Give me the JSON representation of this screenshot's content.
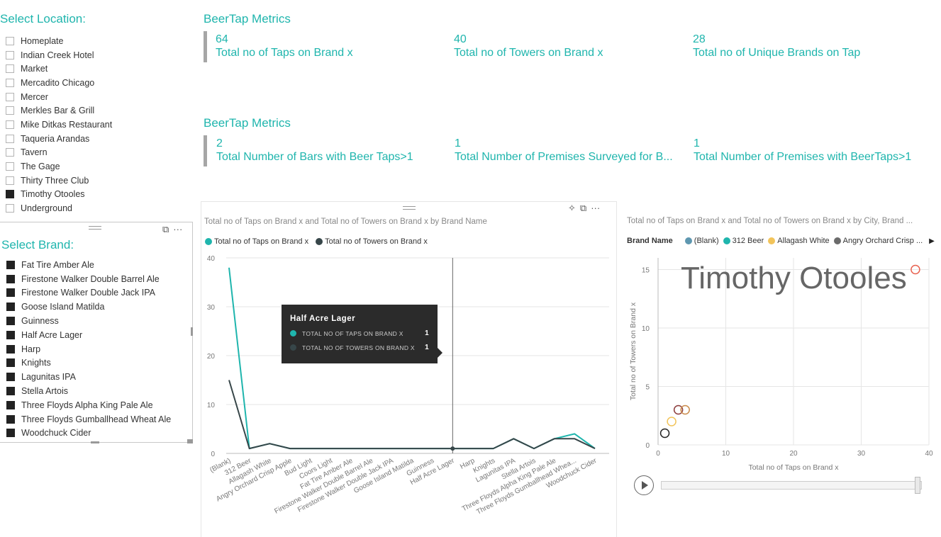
{
  "location_slicer": {
    "title": "Select Location:",
    "items": [
      {
        "label": "Homeplate",
        "checked": false
      },
      {
        "label": "Indian Creek Hotel",
        "checked": false
      },
      {
        "label": "Market",
        "checked": false
      },
      {
        "label": "Mercadito Chicago",
        "checked": false
      },
      {
        "label": "Mercer",
        "checked": false
      },
      {
        "label": "Merkles Bar & Grill",
        "checked": false
      },
      {
        "label": "Mike Ditkas Restaurant",
        "checked": false
      },
      {
        "label": "Taqueria Arandas",
        "checked": false
      },
      {
        "label": "Tavern",
        "checked": false
      },
      {
        "label": "The Gage",
        "checked": false
      },
      {
        "label": "Thirty Three Club",
        "checked": false
      },
      {
        "label": "Timothy Otooles",
        "checked": true
      },
      {
        "label": "Underground",
        "checked": false
      }
    ]
  },
  "brand_slicer": {
    "title": "Select Brand:",
    "items": [
      {
        "label": "Fat Tire Amber Ale",
        "checked": true
      },
      {
        "label": "Firestone Walker Double Barrel Ale",
        "checked": true
      },
      {
        "label": "Firestone Walker Double Jack IPA",
        "checked": true
      },
      {
        "label": "Goose Island Matilda",
        "checked": true
      },
      {
        "label": "Guinness",
        "checked": true
      },
      {
        "label": "Half Acre Lager",
        "checked": true
      },
      {
        "label": "Harp",
        "checked": true
      },
      {
        "label": "Knights",
        "checked": true
      },
      {
        "label": "Lagunitas IPA",
        "checked": true
      },
      {
        "label": "Stella Artois",
        "checked": true
      },
      {
        "label": "Three Floyds Alpha King Pale Ale",
        "checked": true
      },
      {
        "label": "Three Floyds Gumballhead Wheat Ale",
        "checked": true
      },
      {
        "label": "Woodchuck Cider",
        "checked": true
      }
    ]
  },
  "card_groups": [
    {
      "title": "BeerTap Metrics",
      "cards": [
        {
          "value": "64",
          "label": "Total no of Taps on Brand x"
        },
        {
          "value": "40",
          "label": "Total no of Towers on Brand x"
        },
        {
          "value": "28",
          "label": "Total no of Unique Brands on Tap"
        }
      ]
    },
    {
      "title": "BeerTap Metrics",
      "cards": [
        {
          "value": "2",
          "label": "Total Number of Bars with Beer Taps>1"
        },
        {
          "value": "1",
          "label": "Total Number of Premises Surveyed for B..."
        },
        {
          "value": "1",
          "label": "Total Number of Premises with BeerTaps>1"
        }
      ]
    }
  ],
  "visual_icons": {
    "pin": "pin-icon",
    "focus": "focus-mode-icon",
    "more": "more-options-icon"
  },
  "chart_data": [
    {
      "type": "line",
      "title": "Total no of Taps on Brand x and Total no of Towers on Brand x by Brand Name",
      "categories": [
        "(Blank)",
        "312 Beer",
        "Allagash White",
        "Angry Orchard Crisp Apple",
        "Bud Light",
        "Coors Light",
        "Fat Tire Amber Ale",
        "Firestone Walker Double Barrel Ale",
        "Firestone Walker Double Jack IPA",
        "Goose Island Matilda",
        "Guinness",
        "Half Acre Lager",
        "Harp",
        "Knights",
        "Lagunitas IPA",
        "Stella Artois",
        "Three Floyds Alpha King Pale Ale",
        "Three Floyds Gumballhead Whea...",
        "Woodchuck Cider"
      ],
      "series": [
        {
          "name": "Total no of Taps on Brand x",
          "color": "#1fb5ad",
          "values": [
            38,
            1,
            2,
            1,
            1,
            1,
            1,
            1,
            1,
            1,
            1,
            1,
            1,
            1,
            3,
            1,
            3,
            4,
            1
          ]
        },
        {
          "name": "Total no of Towers on Brand x",
          "color": "#374649",
          "values": [
            15,
            1,
            2,
            1,
            1,
            1,
            1,
            1,
            1,
            1,
            1,
            1,
            1,
            1,
            3,
            1,
            3,
            3,
            1
          ]
        }
      ],
      "y_ticks": [
        "0",
        "10",
        "20",
        "30",
        "40"
      ],
      "ylim": [
        0,
        40
      ],
      "legend": "top-left",
      "grid": true,
      "highlight_category": "Half Acre Lager",
      "tooltip": {
        "title": "Half Acre Lager",
        "rows": [
          {
            "label": "TOTAL NO OF TAPS ON BRAND X",
            "value": "1",
            "color": "#1fb5ad"
          },
          {
            "label": "TOTAL NO OF TOWERS ON BRAND X",
            "value": "1",
            "color": "#374649"
          }
        ]
      }
    },
    {
      "type": "scatter",
      "title": "Total no of Taps on Brand x and Total no of Towers on Brand x by City, Brand ...",
      "xlabel": "Total no of Taps on Brand x",
      "ylabel": "Total no of Towers on Brand x",
      "x_ticks": [
        "0",
        "10",
        "20",
        "30",
        "40"
      ],
      "y_ticks": [
        "0",
        "5",
        "10",
        "15"
      ],
      "xlim": [
        0,
        40
      ],
      "ylim": [
        0,
        16
      ],
      "legend_title": "Brand Name",
      "legend": [
        {
          "name": "(Blank)",
          "color": "#5e97b0"
        },
        {
          "name": "312 Beer",
          "color": "#1fb5ad"
        },
        {
          "name": "Allagash White",
          "color": "#f2c45a"
        },
        {
          "name": "Angry Orchard Crisp ...",
          "color": "#6b6b6b"
        }
      ],
      "points": [
        {
          "x": 38,
          "y": 15,
          "color": "#e8614f"
        },
        {
          "x": 3,
          "y": 3,
          "color": "#8b3a3a"
        },
        {
          "x": 4,
          "y": 3,
          "color": "#c98a4a"
        },
        {
          "x": 2,
          "y": 2,
          "color": "#f2c45a"
        },
        {
          "x": 1,
          "y": 1,
          "color": "#222222"
        }
      ],
      "play_axis_label": "Timothy Otooles",
      "grid": true
    }
  ]
}
